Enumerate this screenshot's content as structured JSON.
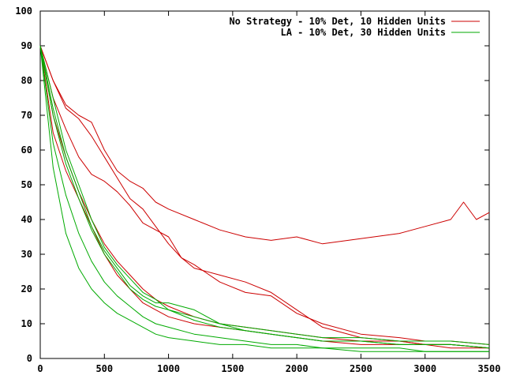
{
  "chart_data": {
    "type": "line",
    "title": "",
    "xlabel": "",
    "ylabel": "",
    "xlim": [
      0,
      3500
    ],
    "ylim": [
      0,
      100
    ],
    "x_ticks": [
      0,
      500,
      1000,
      1500,
      2000,
      2500,
      3000,
      3500
    ],
    "y_ticks": [
      0,
      10,
      20,
      30,
      40,
      50,
      60,
      70,
      80,
      90,
      100
    ],
    "grid": false,
    "legend": {
      "placement": "top-right",
      "entries": [
        {
          "label": "No Strategy - 10% Det, 10 Hidden Units",
          "color": "#cc0000"
        },
        {
          "label": "LA - 10% Det, 30 Hidden Units",
          "color": "#00aa00"
        }
      ]
    },
    "series": [
      {
        "group": 0,
        "color": "#cc0000",
        "x": [
          0,
          100,
          200,
          300,
          400,
          500,
          600,
          700,
          800,
          900,
          1000,
          1200,
          1400,
          1600,
          1800,
          2000,
          2200,
          2400,
          2600,
          2800,
          3000,
          3200,
          3300,
          3400,
          3500
        ],
        "y": [
          90,
          80,
          73,
          70,
          68,
          60,
          54,
          51,
          49,
          45,
          43,
          40,
          37,
          35,
          34,
          35,
          33,
          34,
          35,
          36,
          38,
          40,
          45,
          40,
          42
        ]
      },
      {
        "group": 0,
        "color": "#cc0000",
        "x": [
          0,
          100,
          200,
          300,
          400,
          500,
          600,
          700,
          800,
          900,
          1000,
          1100,
          1200,
          1400,
          1600,
          1800,
          2000,
          2200,
          2500,
          2800,
          3000,
          3200,
          3500
        ],
        "y": [
          90,
          75,
          66,
          58,
          53,
          51,
          48,
          44,
          39,
          37,
          35,
          29,
          27,
          22,
          19,
          18,
          13,
          10,
          7,
          6,
          5,
          5,
          4
        ]
      },
      {
        "group": 0,
        "color": "#cc0000",
        "x": [
          0,
          100,
          200,
          300,
          400,
          500,
          600,
          700,
          800,
          900,
          1000,
          1100,
          1200,
          1400,
          1600,
          1800,
          2000,
          2200,
          2500,
          2800,
          3000,
          3200,
          3500
        ],
        "y": [
          90,
          80,
          72,
          69,
          64,
          58,
          52,
          46,
          43,
          38,
          33,
          29,
          26,
          24,
          22,
          19,
          14,
          9,
          6,
          5,
          4,
          4,
          3
        ]
      },
      {
        "group": 0,
        "color": "#cc0000",
        "x": [
          0,
          100,
          200,
          300,
          400,
          500,
          600,
          700,
          800,
          900,
          1000,
          1200,
          1400,
          1600,
          1800,
          2000,
          2200,
          2500,
          2800,
          3000,
          3200,
          3500
        ],
        "y": [
          90,
          65,
          54,
          46,
          38,
          30,
          24,
          20,
          16,
          14,
          12,
          10,
          9,
          8,
          7,
          6,
          5,
          4,
          4,
          4,
          3,
          3
        ]
      },
      {
        "group": 0,
        "color": "#cc0000",
        "x": [
          0,
          100,
          200,
          300,
          400,
          500,
          600,
          700,
          800,
          900,
          1000,
          1200,
          1400,
          1600,
          1800,
          2000,
          2200,
          2500,
          2800,
          3000,
          3200,
          3500
        ],
        "y": [
          90,
          70,
          58,
          48,
          40,
          33,
          28,
          24,
          20,
          17,
          15,
          12,
          10,
          9,
          8,
          7,
          6,
          5,
          5,
          4,
          4,
          3
        ]
      },
      {
        "group": 1,
        "color": "#00aa00",
        "x": [
          0,
          100,
          200,
          300,
          400,
          500,
          600,
          700,
          800,
          900,
          1000,
          1200,
          1400,
          1600,
          1800,
          2000,
          2200,
          2500,
          2800,
          3000,
          3200,
          3500
        ],
        "y": [
          90,
          55,
          36,
          26,
          20,
          16,
          13,
          11,
          9,
          7,
          6,
          5,
          4,
          4,
          3,
          3,
          3,
          2,
          2,
          2,
          2,
          2
        ]
      },
      {
        "group": 1,
        "color": "#00aa00",
        "x": [
          0,
          100,
          200,
          300,
          400,
          500,
          600,
          700,
          800,
          900,
          1000,
          1200,
          1400,
          1600,
          1800,
          2000,
          2200,
          2500,
          2800,
          3000,
          3200,
          3500
        ],
        "y": [
          90,
          62,
          47,
          36,
          28,
          22,
          18,
          15,
          12,
          10,
          9,
          7,
          6,
          5,
          4,
          4,
          3,
          3,
          3,
          2,
          2,
          2
        ]
      },
      {
        "group": 1,
        "color": "#00aa00",
        "x": [
          0,
          100,
          200,
          300,
          400,
          500,
          600,
          700,
          800,
          900,
          1000,
          1200,
          1400,
          1600,
          1800,
          2000,
          2200,
          2500,
          2800,
          3000,
          3200,
          3500
        ],
        "y": [
          90,
          70,
          56,
          46,
          37,
          30,
          25,
          20,
          17,
          15,
          14,
          11,
          9,
          8,
          7,
          6,
          5,
          5,
          4,
          4,
          4,
          3
        ]
      },
      {
        "group": 1,
        "color": "#00aa00",
        "x": [
          0,
          100,
          200,
          300,
          400,
          500,
          600,
          700,
          800,
          900,
          1000,
          1100,
          1200,
          1400,
          1600,
          1800,
          2000,
          2200,
          2500,
          2800,
          3000,
          3200,
          3500
        ],
        "y": [
          90,
          72,
          58,
          48,
          38,
          31,
          26,
          21,
          18,
          16,
          16,
          15,
          14,
          10,
          9,
          8,
          7,
          6,
          6,
          5,
          5,
          5,
          4
        ]
      },
      {
        "group": 1,
        "color": "#00aa00",
        "x": [
          0,
          100,
          200,
          300,
          400,
          500,
          600,
          700,
          800,
          900,
          1000,
          1200,
          1400,
          1600,
          1800,
          2000,
          2200,
          2500,
          2800,
          3000,
          3200,
          3500
        ],
        "y": [
          90,
          75,
          60,
          50,
          40,
          32,
          27,
          23,
          19,
          17,
          14,
          12,
          10,
          8,
          7,
          6,
          5,
          5,
          4,
          4,
          4,
          3
        ]
      }
    ]
  }
}
